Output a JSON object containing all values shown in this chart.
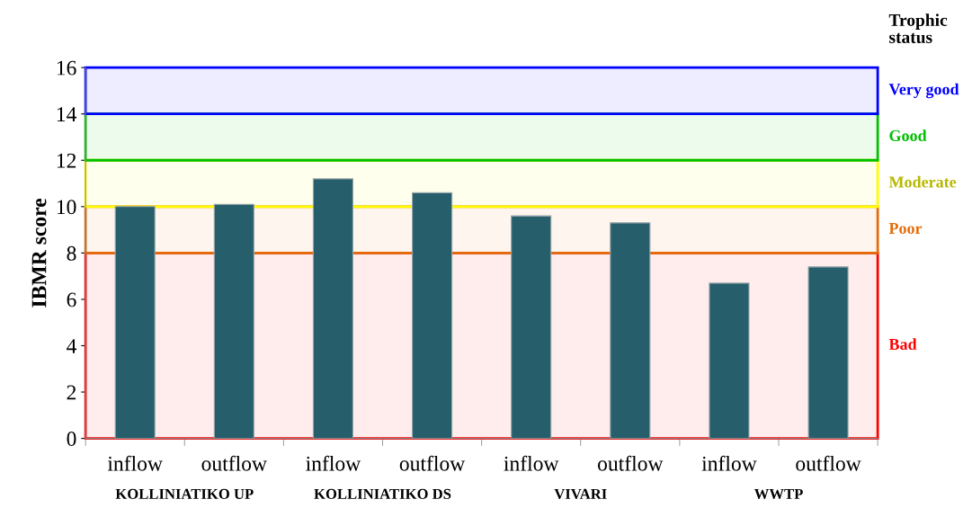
{
  "chart_data": {
    "type": "bar",
    "categories": [
      "inflow",
      "outflow",
      "inflow",
      "outflow",
      "inflow",
      "outflow",
      "inflow",
      "outflow"
    ],
    "values": [
      10.0,
      10.1,
      11.2,
      10.6,
      9.6,
      9.3,
      6.7,
      7.4
    ],
    "color": "#265e6c",
    "ylabel": "IBMR score",
    "ylim": [
      0,
      16
    ],
    "yticks": [
      0,
      2,
      4,
      6,
      8,
      10,
      12,
      14,
      16
    ],
    "grid": false,
    "legend": false,
    "legend_title": "Trophic status",
    "bands": [
      {
        "axis": "y",
        "from": 0,
        "to": 8,
        "label": "Bad",
        "color": "#ff0000"
      },
      {
        "axis": "y",
        "from": 8,
        "to": 10,
        "label": "Poor",
        "color": "#e46c0a"
      },
      {
        "axis": "y",
        "from": 10,
        "to": 12,
        "label": "Moderate",
        "color": "#ffff00"
      },
      {
        "axis": "y",
        "from": 12,
        "to": 14,
        "label": "Good",
        "color": "#00c000"
      },
      {
        "axis": "y",
        "from": 14,
        "to": 16,
        "label": "Very good",
        "color": "#0000ff"
      }
    ],
    "annotations": [
      "KOLLINIATIKO UP",
      "KOLLINIATIKO DS",
      "VIVARI",
      "WWTP"
    ]
  }
}
